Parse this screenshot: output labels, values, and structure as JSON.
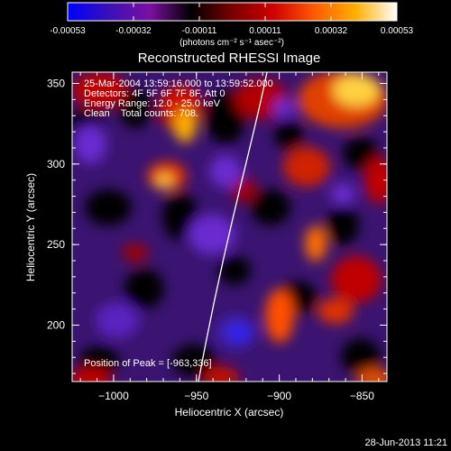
{
  "colorbar": {
    "ticks": [
      "-0.00053",
      "-0.00032",
      "-0.00011",
      "0.00011",
      "0.00032",
      "0.00053"
    ],
    "unit_label": "(photons cm⁻² s⁻¹ asec⁻²)",
    "stops": [
      "#0000ff",
      "#3a10b8",
      "#7a10a0",
      "#000000",
      "#7a0000",
      "#d00000",
      "#ff5a00",
      "#ffb000",
      "#ffffff"
    ]
  },
  "title": "Reconstructed RHESSI Image",
  "annotations": {
    "time_range": "25-Mar-2004 13:59:16.000 to 13:59:52.000",
    "detectors": "Detectors: 4F 5F 6F 7F 8F, Att 0",
    "energy_range": "Energy Range: 12.0 - 25.0 keV",
    "method": "Clean    Total counts: 708.",
    "peak": "Position of Peak = [-963,336]"
  },
  "axes": {
    "xlabel": "Heliocentric X (arcsec)",
    "ylabel": "Heliocentric Y (arcsec)",
    "xticks": [
      -1000,
      -950,
      -900,
      -850
    ],
    "yticks": [
      200,
      250,
      300,
      350
    ],
    "xrange": [
      -1025,
      -835
    ],
    "yrange": [
      165,
      357
    ]
  },
  "date_stamp": "28-Jun-2013 11:21",
  "colors": {
    "limb": "#ffffff",
    "frame": "#ffffff"
  }
}
